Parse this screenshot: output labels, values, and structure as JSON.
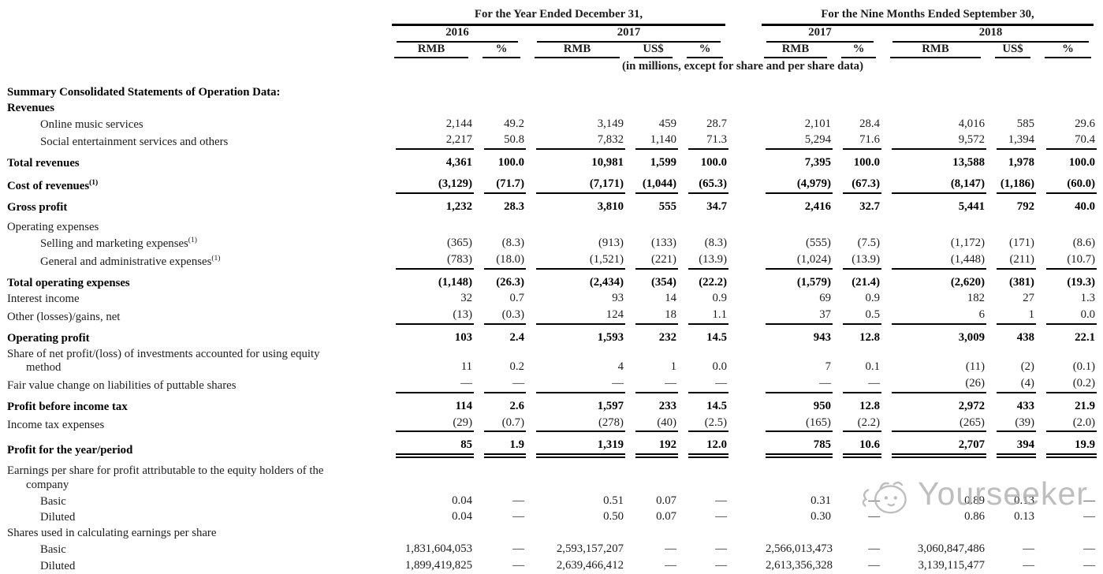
{
  "colors": {
    "text": "#1c1c1c",
    "rule": "#000000",
    "watermark_gray": "#b3b3b3"
  },
  "watermark": {
    "text": "Yourseeker"
  },
  "table": {
    "group_headers": [
      {
        "label": "For the Year Ended December 31,",
        "span": 5
      },
      {
        "label": "For the Nine Months Ended September 30,",
        "span": 5
      }
    ],
    "year_headers": [
      "2016",
      "2017",
      "2017",
      "2018"
    ],
    "currency_headers": [
      "RMB",
      "%",
      "RMB",
      "US$",
      "%",
      "RMB",
      "%",
      "RMB",
      "US$",
      "%"
    ],
    "units_note": "(in millions, except for share and per share data)",
    "rows": [
      {
        "label": "Summary Consolidated Statements of Operation Data:",
        "bold": true,
        "values": null
      },
      {
        "label": "Revenues",
        "bold": true,
        "values": null
      },
      {
        "label": "Online music services",
        "indent": 1,
        "values": [
          "2,144",
          "49.2",
          "3,149",
          "459",
          "28.7",
          "2,101",
          "28.4",
          "4,016",
          "585",
          "29.6"
        ]
      },
      {
        "label": "Social entertainment services and others",
        "indent": 1,
        "rule": "single",
        "values": [
          "2,217",
          "50.8",
          "7,832",
          "1,140",
          "71.3",
          "5,294",
          "71.6",
          "9,572",
          "1,394",
          "70.4"
        ]
      },
      {
        "label": "Total revenues",
        "bold": true,
        "gap": true,
        "values": [
          "4,361",
          "100.0",
          "10,981",
          "1,599",
          "100.0",
          "7,395",
          "100.0",
          "13,588",
          "1,978",
          "100.0"
        ]
      },
      {
        "label": "Cost of revenues",
        "sup": "(1)",
        "bold": true,
        "gap": true,
        "rule": "single",
        "values": [
          "(3,129)",
          "(71.7)",
          "(7,171)",
          "(1,044)",
          "(65.3)",
          "(4,979)",
          "(67.3)",
          "(8,147)",
          "(1,186)",
          "(60.0)"
        ]
      },
      {
        "label": "Gross profit",
        "bold": true,
        "gap": true,
        "values": [
          "1,232",
          "28.3",
          "3,810",
          "555",
          "34.7",
          "2,416",
          "32.7",
          "5,441",
          "792",
          "40.0"
        ]
      },
      {
        "label": "Operating expenses",
        "gap": true,
        "values": null
      },
      {
        "label": "Selling and marketing expenses",
        "sup": "(1)",
        "indent": 1,
        "values": [
          "(365)",
          "(8.3)",
          "(913)",
          "(133)",
          "(8.3)",
          "(555)",
          "(7.5)",
          "(1,172)",
          "(171)",
          "(8.6)"
        ]
      },
      {
        "label": "General and administrative expenses",
        "sup": "(1)",
        "indent": 1,
        "rule": "single",
        "values": [
          "(783)",
          "(18.0)",
          "(1,521)",
          "(221)",
          "(13.9)",
          "(1,024)",
          "(13.9)",
          "(1,448)",
          "(211)",
          "(10.7)"
        ]
      },
      {
        "label": "Total operating expenses",
        "bold": true,
        "gap": true,
        "values": [
          "(1,148)",
          "(26.3)",
          "(2,434)",
          "(354)",
          "(22.2)",
          "(1,579)",
          "(21.4)",
          "(2,620)",
          "(381)",
          "(19.3)"
        ]
      },
      {
        "label": "Interest income",
        "values": [
          "32",
          "0.7",
          "93",
          "14",
          "0.9",
          "69",
          "0.9",
          "182",
          "27",
          "1.3"
        ]
      },
      {
        "label": "Other (losses)/gains, net",
        "rule": "single",
        "values": [
          "(13)",
          "(0.3)",
          "124",
          "18",
          "1.1",
          "37",
          "0.5",
          "6",
          "1",
          "0.0"
        ]
      },
      {
        "label": "Operating profit",
        "bold": true,
        "gap": true,
        "values": [
          "103",
          "2.4",
          "1,593",
          "232",
          "14.5",
          "943",
          "12.8",
          "3,009",
          "438",
          "22.1"
        ]
      },
      {
        "label": "Share of net profit/(loss) of investments accounted for using equity\nmethod",
        "wrap": true,
        "values": [
          "11",
          "0.2",
          "4",
          "1",
          "0.0",
          "7",
          "0.1",
          "(11)",
          "(2)",
          "(0.1)"
        ]
      },
      {
        "label": "Fair value change on liabilities of puttable shares",
        "rule": "single",
        "values": [
          "—",
          "—",
          "—",
          "—",
          "—",
          "—",
          "—",
          "(26)",
          "(4)",
          "(0.2)"
        ]
      },
      {
        "label": "Profit before income tax",
        "bold": true,
        "gap": true,
        "values": [
          "114",
          "2.6",
          "1,597",
          "233",
          "14.5",
          "950",
          "12.8",
          "2,972",
          "433",
          "21.9"
        ]
      },
      {
        "label": "Income tax expenses",
        "rule": "single",
        "values": [
          "(29)",
          "(0.7)",
          "(278)",
          "(40)",
          "(2.5)",
          "(165)",
          "(2.2)",
          "(265)",
          "(39)",
          "(2.0)"
        ]
      },
      {
        "label": "Profit for the year/period",
        "bold": true,
        "gap": true,
        "rule": "double",
        "values": [
          "85",
          "1.9",
          "1,319",
          "192",
          "12.0",
          "785",
          "10.6",
          "2,707",
          "394",
          "19.9"
        ]
      },
      {
        "label": "Earnings per share for profit attributable to the equity holders of the\ncompany",
        "wrap": true,
        "gap": true,
        "values": null
      },
      {
        "label": "Basic",
        "indent": 1,
        "values": [
          "0.04",
          "—",
          "0.51",
          "0.07",
          "—",
          "0.31",
          "—",
          "0.89",
          "0.13",
          "—"
        ]
      },
      {
        "label": "Diluted",
        "indent": 1,
        "values": [
          "0.04",
          "—",
          "0.50",
          "0.07",
          "—",
          "0.30",
          "—",
          "0.86",
          "0.13",
          "—"
        ]
      },
      {
        "label": "Shares used in calculating earnings per share",
        "values": null
      },
      {
        "label": "Basic",
        "indent": 1,
        "values": [
          "1,831,604,053",
          "—",
          "2,593,157,207",
          "—",
          "—",
          "2,566,013,473",
          "—",
          "3,060,847,486",
          "—",
          "—"
        ]
      },
      {
        "label": "Diluted",
        "indent": 1,
        "values": [
          "1,899,419,825",
          "—",
          "2,639,466,412",
          "—",
          "—",
          "2,613,356,328",
          "—",
          "3,139,115,477",
          "—",
          "—"
        ]
      }
    ]
  }
}
